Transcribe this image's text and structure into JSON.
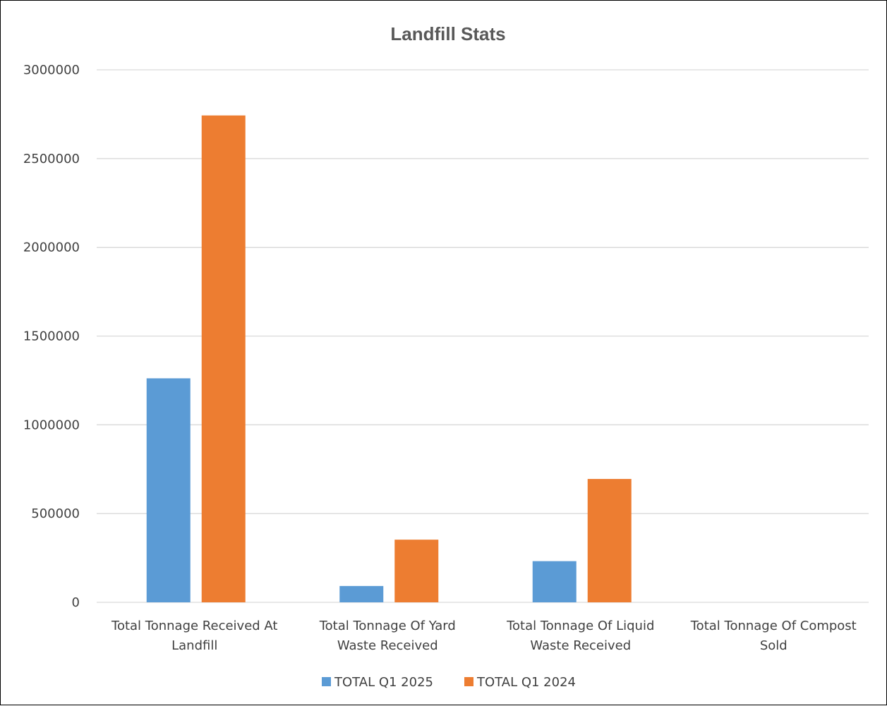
{
  "chart_data": {
    "type": "bar",
    "title": "Landfill Stats",
    "xlabel": "",
    "ylabel": "",
    "ylim": [
      0,
      3000000
    ],
    "yticks": [
      0,
      500000,
      1000000,
      1500000,
      2000000,
      2500000,
      3000000
    ],
    "ytick_labels": [
      "0",
      "500000",
      "1000000",
      "1500000",
      "2000000",
      "2500000",
      "3000000"
    ],
    "grid": true,
    "legend_position": "bottom",
    "categories": [
      [
        "Total Tonnage Received At",
        "Landfill"
      ],
      [
        "Total Tonnage Of Yard",
        "Waste Received"
      ],
      [
        "Total Tonnage Of Liquid",
        "Waste Received"
      ],
      [
        "Total Tonnage Of Compost",
        "Sold"
      ]
    ],
    "series": [
      {
        "name": "TOTAL Q1 2025",
        "color": "#5B9BD5",
        "values": [
          1262000,
          92000,
          232000,
          0
        ]
      },
      {
        "name": "TOTAL Q1 2024",
        "color": "#ED7D31",
        "values": [
          2743000,
          353000,
          695000,
          0
        ]
      }
    ]
  }
}
